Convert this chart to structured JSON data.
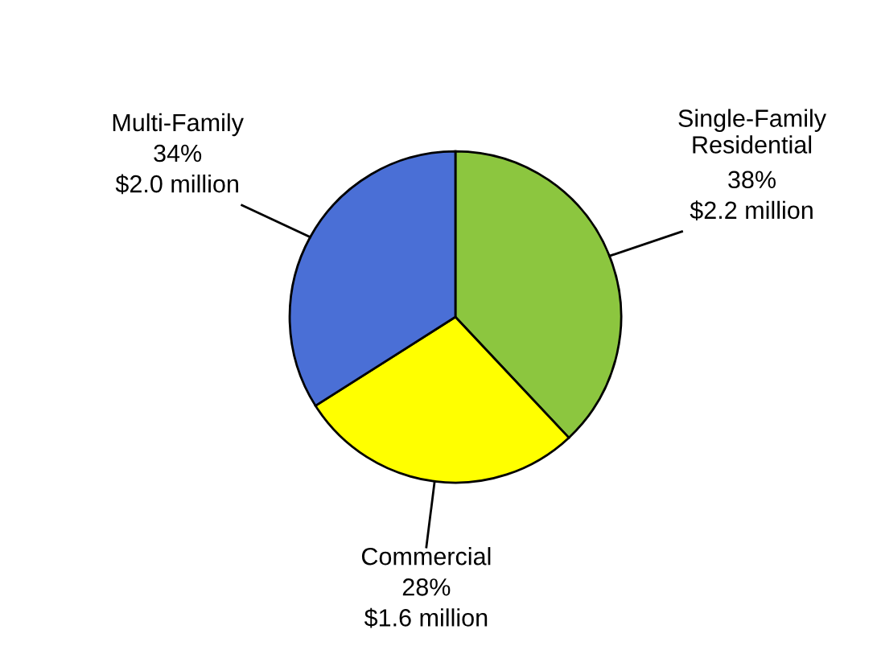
{
  "chart_data": {
    "type": "pie",
    "categories": [
      "Single-Family\nResidential",
      "Commercial",
      "Multi-Family"
    ],
    "values": [
      38,
      28,
      34
    ],
    "value_labels": [
      "38%",
      "28%",
      "34%"
    ],
    "annotations": [
      "$2.2 million",
      "$1.6 million",
      "$2.0 million"
    ],
    "colors": [
      "#8cc63f",
      "#ffff00",
      "#4a6fd6"
    ]
  }
}
